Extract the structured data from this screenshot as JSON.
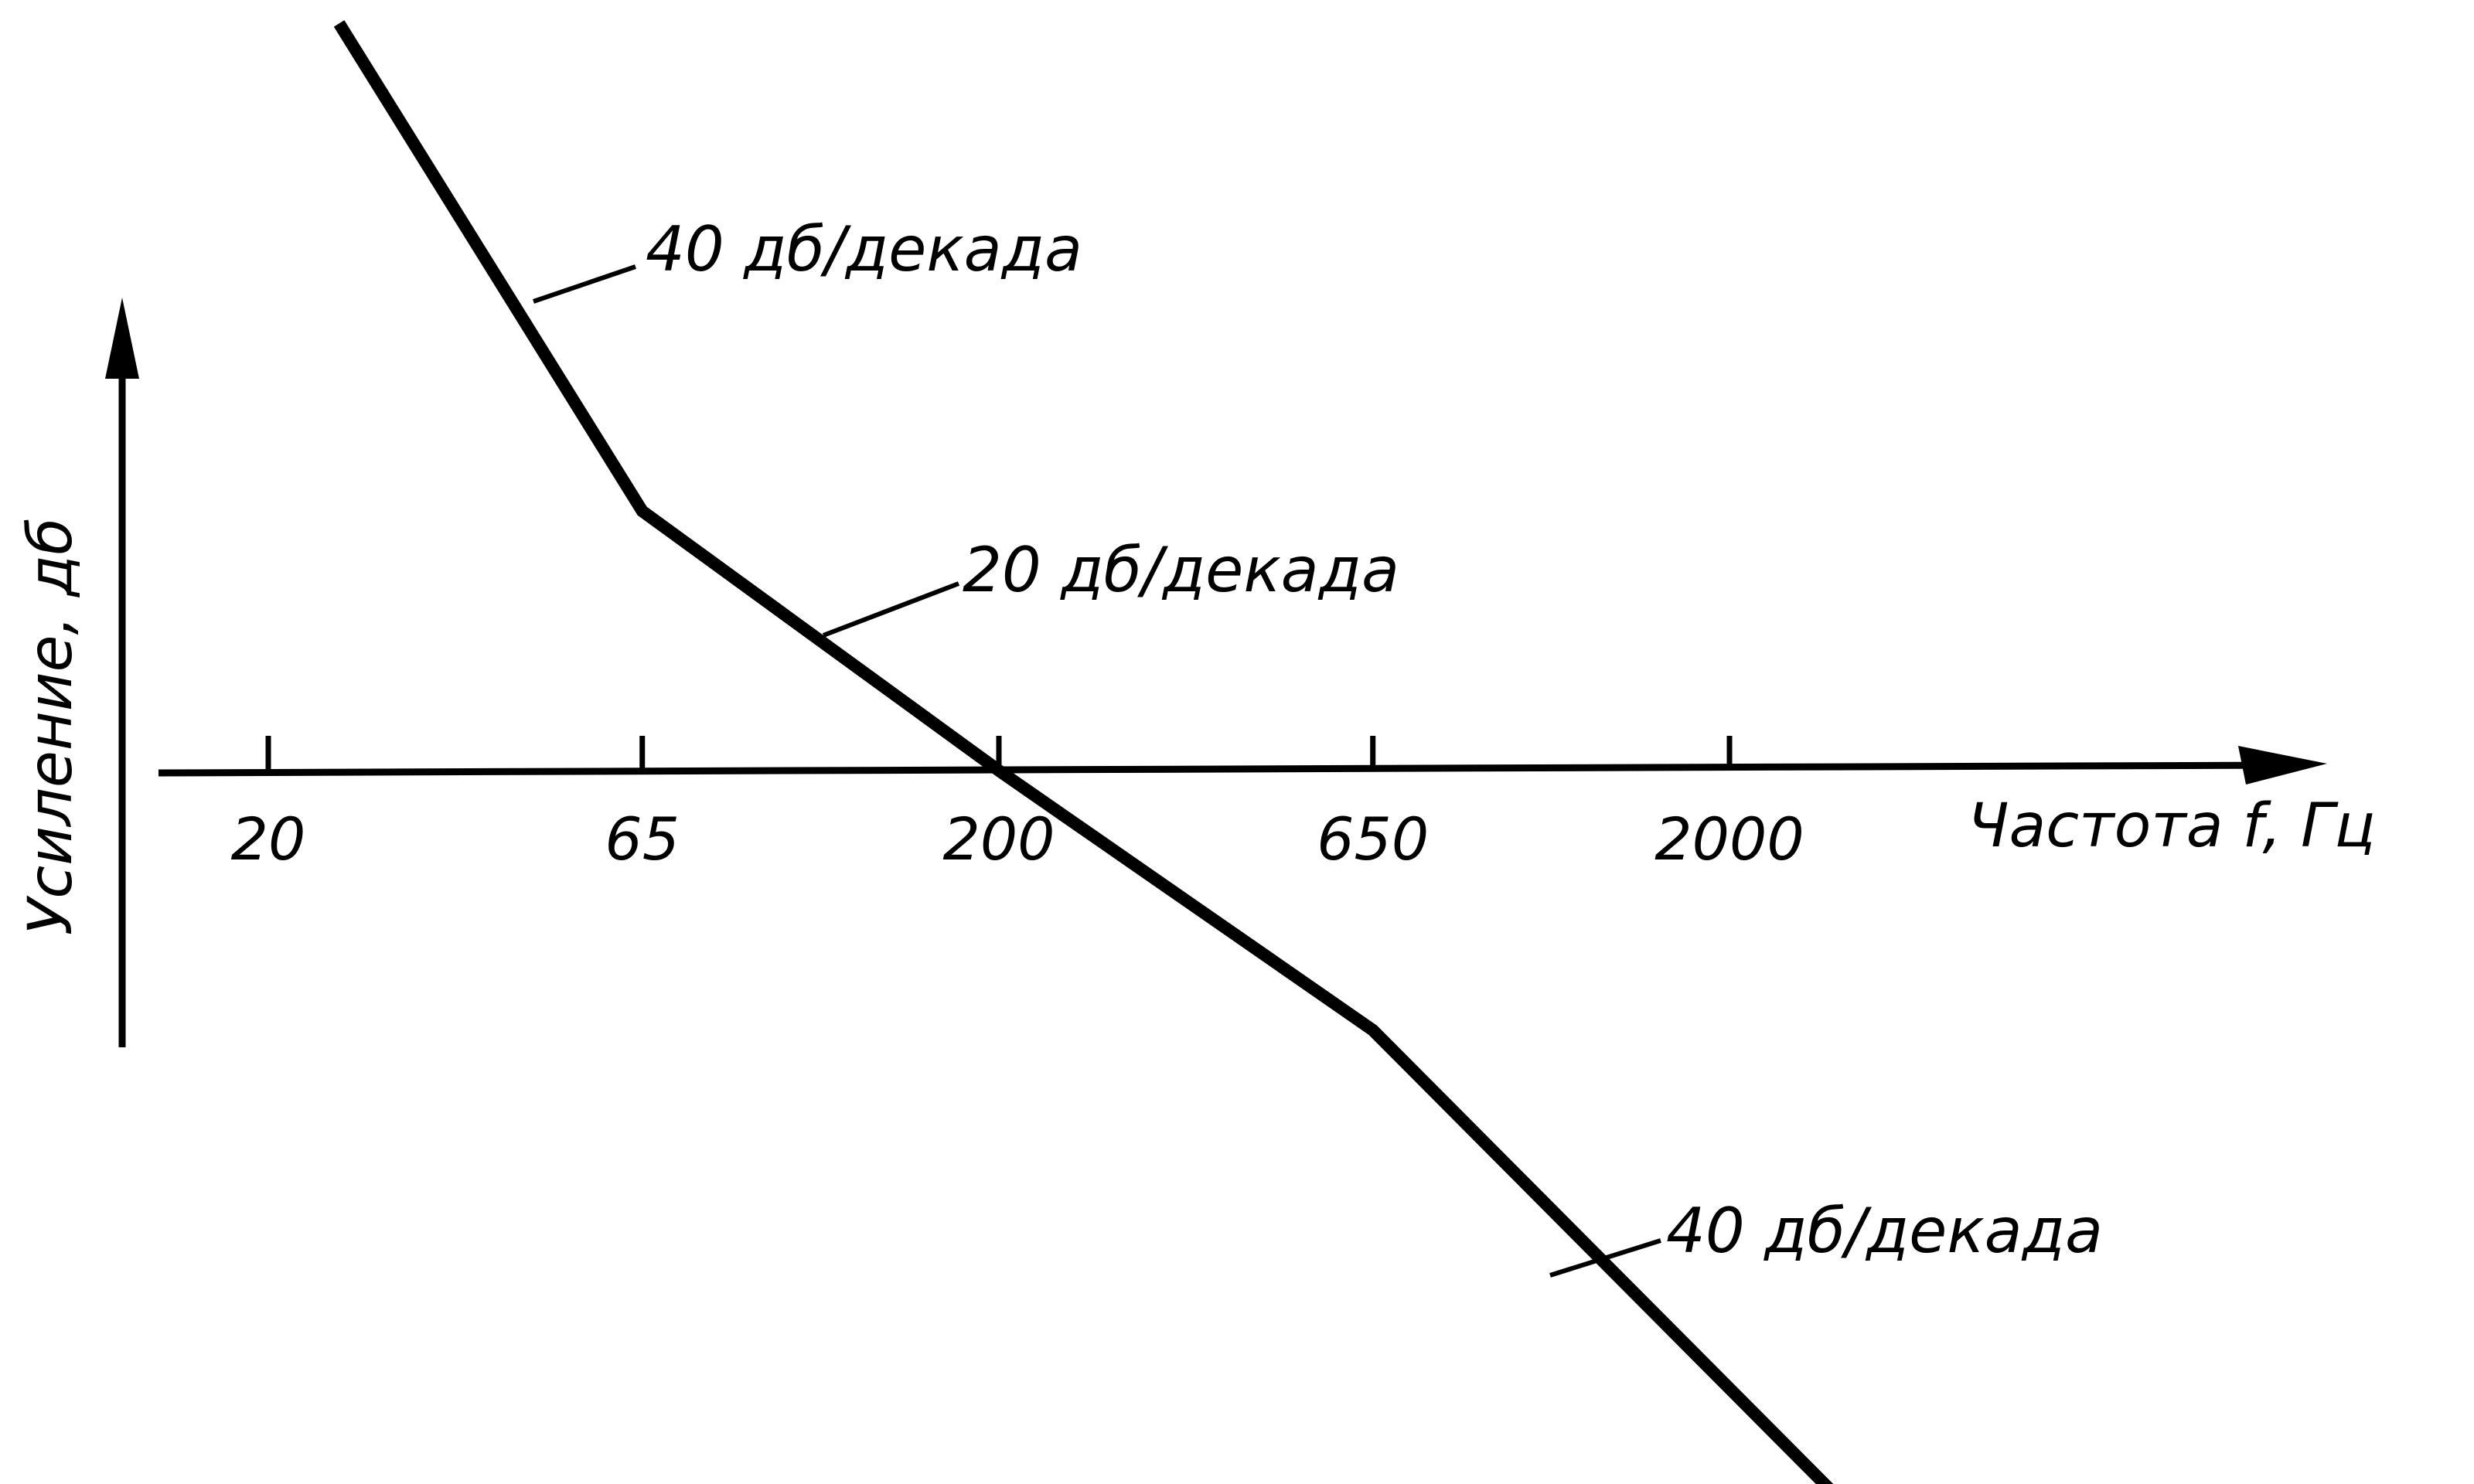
{
  "chart_data": {
    "type": "line",
    "title": "",
    "xlabel": "Частота f, Гц",
    "ylabel": "Усиление, дб",
    "x_scale": "log",
    "grid": false,
    "legend": "none",
    "x_ticks": [
      "20",
      "65",
      "200",
      "650",
      "2000"
    ],
    "x": [
      25,
      65,
      200,
      650,
      3000
    ],
    "y": [
      59.3,
      20.6,
      0,
      -20.6,
      -59.3
    ],
    "series": [
      {
        "values": [
          59.3,
          20.6,
          0,
          -20.6,
          -59.3
        ]
      }
    ],
    "annotations": [
      {
        "text": "40 дб/декада",
        "segment": "low"
      },
      {
        "text": "20 дб/декада",
        "segment": "middle"
      },
      {
        "text": "40 дб/декада",
        "segment": "high"
      }
    ],
    "colors": {
      "line": "#000000",
      "axis": "#000000"
    }
  }
}
